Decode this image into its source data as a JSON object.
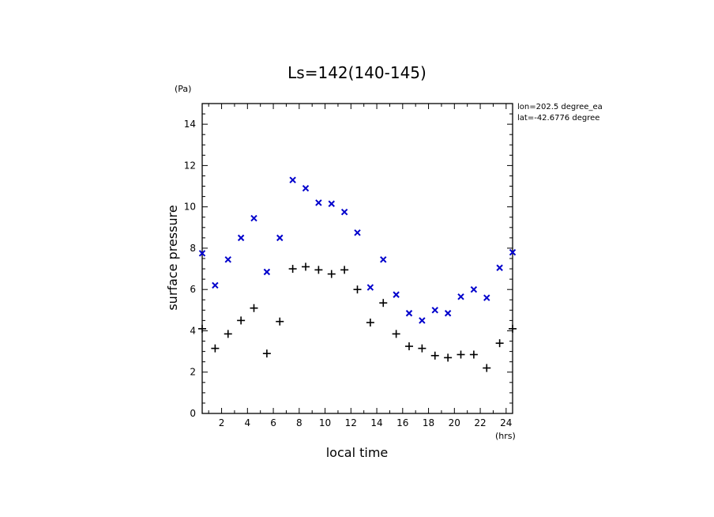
{
  "chart_data": {
    "type": "scatter",
    "title": "Ls=142(140-145)",
    "xlabel": "local time",
    "ylabel": "surface pressure",
    "xunit": "(hrs)",
    "yunit": "(Pa)",
    "xlim": [
      0.5,
      24.5
    ],
    "ylim": [
      0,
      15
    ],
    "xticks": [
      2,
      4,
      6,
      8,
      10,
      12,
      14,
      16,
      18,
      20,
      22,
      24
    ],
    "yticks": [
      0,
      2,
      4,
      6,
      8,
      10,
      12,
      14
    ],
    "annotations": [
      "lon=202.5 degree_ea",
      "lat=-42.6776 degree"
    ],
    "grid": false,
    "series": [
      {
        "marker": "x",
        "color": "#0000cc",
        "x": [
          0.5,
          1.5,
          2.5,
          3.5,
          4.5,
          5.5,
          6.5,
          7.5,
          8.5,
          9.5,
          10.5,
          11.5,
          12.5,
          13.5,
          14.5,
          15.5,
          16.5,
          17.5,
          18.5,
          19.5,
          20.5,
          21.5,
          22.5,
          23.5,
          24.5
        ],
        "y": [
          7.75,
          6.2,
          7.45,
          8.5,
          9.45,
          6.85,
          8.5,
          11.3,
          10.9,
          10.2,
          10.15,
          9.75,
          8.75,
          6.1,
          7.45,
          5.75,
          4.85,
          4.5,
          5.0,
          4.85,
          5.65,
          6.0,
          5.6,
          7.05,
          7.8
        ]
      },
      {
        "marker": "+",
        "color": "#000000",
        "x": [
          0.5,
          1.5,
          2.5,
          3.5,
          4.5,
          5.5,
          6.5,
          7.5,
          8.5,
          9.5,
          10.5,
          11.5,
          12.5,
          13.5,
          14.5,
          15.5,
          16.5,
          17.5,
          18.5,
          19.5,
          20.5,
          21.5,
          22.5,
          23.5,
          24.5
        ],
        "y": [
          4.1,
          3.15,
          3.85,
          4.5,
          5.1,
          2.9,
          4.45,
          7.0,
          7.1,
          6.95,
          6.75,
          6.95,
          6.0,
          4.4,
          5.35,
          3.85,
          3.25,
          3.15,
          2.8,
          2.7,
          2.85,
          2.85,
          2.2,
          3.4,
          4.1
        ]
      }
    ]
  }
}
